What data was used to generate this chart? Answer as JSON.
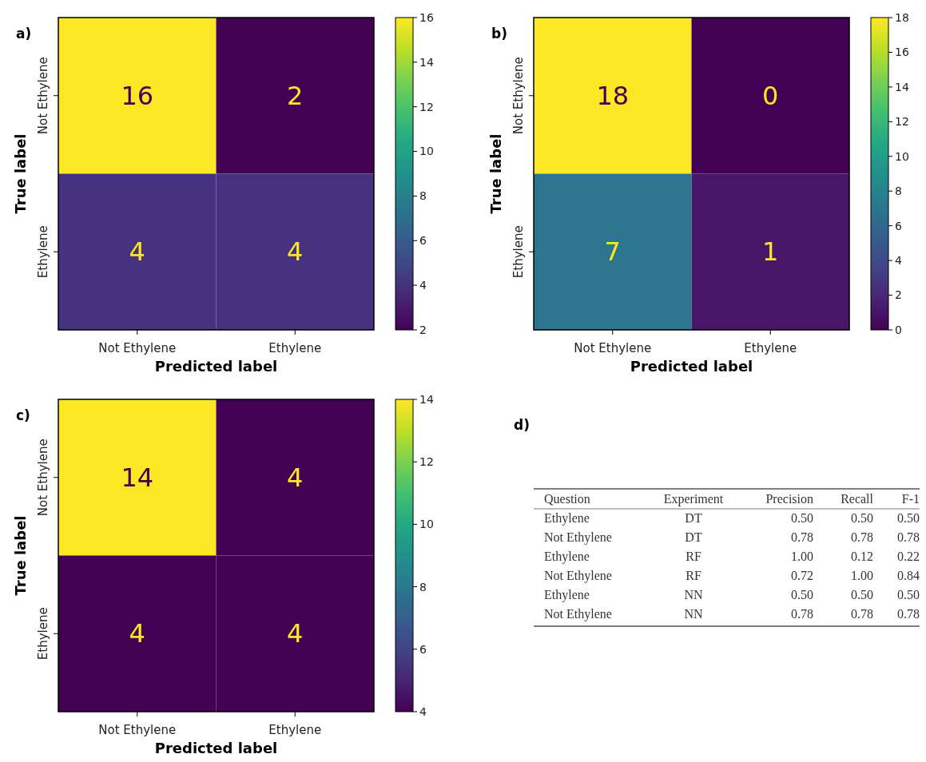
{
  "chart_data": [
    {
      "type": "heatmap",
      "title": "a)",
      "xlabel": "Predicted label",
      "ylabel": "True label",
      "categories": [
        "Not Ethylene",
        "Ethylene"
      ],
      "y_categories": [
        "Not Ethylene",
        "Ethylene"
      ],
      "cells": [
        [
          16,
          2
        ],
        [
          4,
          4
        ]
      ],
      "data_labels": true,
      "clim": [
        2,
        16
      ],
      "cticks": [
        2,
        4,
        6,
        8,
        10,
        12,
        14,
        16
      ]
    },
    {
      "type": "heatmap",
      "title": "b)",
      "xlabel": "Predicted label",
      "ylabel": "True label",
      "categories": [
        "Not Ethylene",
        "Ethylene"
      ],
      "y_categories": [
        "Not Ethylene",
        "Ethylene"
      ],
      "cells": [
        [
          18,
          0
        ],
        [
          7,
          1
        ]
      ],
      "data_labels": true,
      "clim": [
        0,
        18
      ],
      "cticks": [
        0,
        2,
        4,
        6,
        8,
        10,
        12,
        14,
        16,
        18
      ]
    },
    {
      "type": "heatmap",
      "title": "c)",
      "xlabel": "Predicted label",
      "ylabel": "True label",
      "categories": [
        "Not Ethylene",
        "Ethylene"
      ],
      "y_categories": [
        "Not Ethylene",
        "Ethylene"
      ],
      "cells": [
        [
          14,
          4
        ],
        [
          4,
          4
        ]
      ],
      "data_labels": true,
      "clim": [
        4,
        14
      ],
      "cticks": [
        4,
        6,
        8,
        10,
        12,
        14
      ]
    },
    {
      "type": "other",
      "title": "d)",
      "categories": [
        "Question",
        "Experiment",
        "Precision",
        "Recall",
        "F-1"
      ],
      "cell_labels": [
        [
          "Ethylene",
          "DT",
          "0.50",
          "0.50",
          "0.50"
        ],
        [
          "Not Ethylene",
          "DT",
          "0.78",
          "0.78",
          "0.78"
        ],
        [
          "Ethylene",
          "RF",
          "1.00",
          "0.12",
          "0.22"
        ],
        [
          "Not Ethylene",
          "RF",
          "0.72",
          "1.00",
          "0.84"
        ],
        [
          "Ethylene",
          "NN",
          "0.50",
          "0.50",
          "0.50"
        ],
        [
          "Not Ethylene",
          "NN",
          "0.78",
          "0.78",
          "0.78"
        ]
      ]
    }
  ]
}
